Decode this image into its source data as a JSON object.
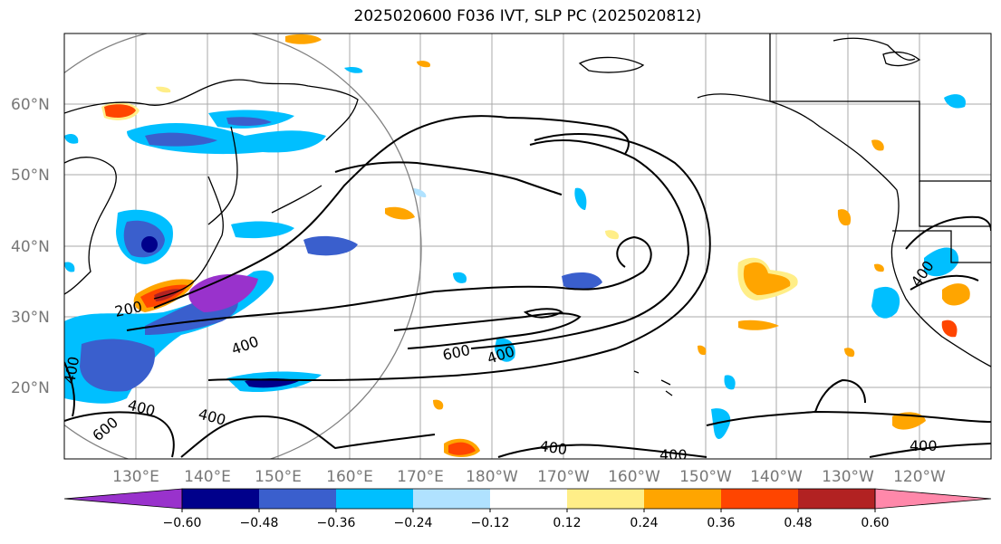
{
  "title": "2025020600 F036 IVT, SLP PC (2025020812)",
  "lat_labels": [
    "60°N",
    "50°N",
    "40°N",
    "30°N",
    "20°N"
  ],
  "lon_labels": [
    "130°E",
    "140°E",
    "150°E",
    "160°E",
    "170°E",
    "180°W",
    "170°W",
    "160°W",
    "150°W",
    "140°W",
    "130°W",
    "120°W"
  ],
  "contour_labels": [
    "200",
    "400",
    "400",
    "400",
    "400",
    "600",
    "400",
    "400",
    "400",
    "400",
    "600",
    "400"
  ],
  "colorbar": {
    "ticks": [
      "−0.60",
      "−0.48",
      "−0.36",
      "−0.24",
      "−0.12",
      "0.12",
      "0.24",
      "0.36",
      "0.48",
      "0.60"
    ],
    "colors": [
      "#9932cc",
      "#00008b",
      "#3a5fcd",
      "#00bfff",
      "#b0e2ff",
      "#ffffff",
      "#ffee88",
      "#ffa500",
      "#ff4500",
      "#b22222",
      "#ff88aa"
    ]
  }
}
